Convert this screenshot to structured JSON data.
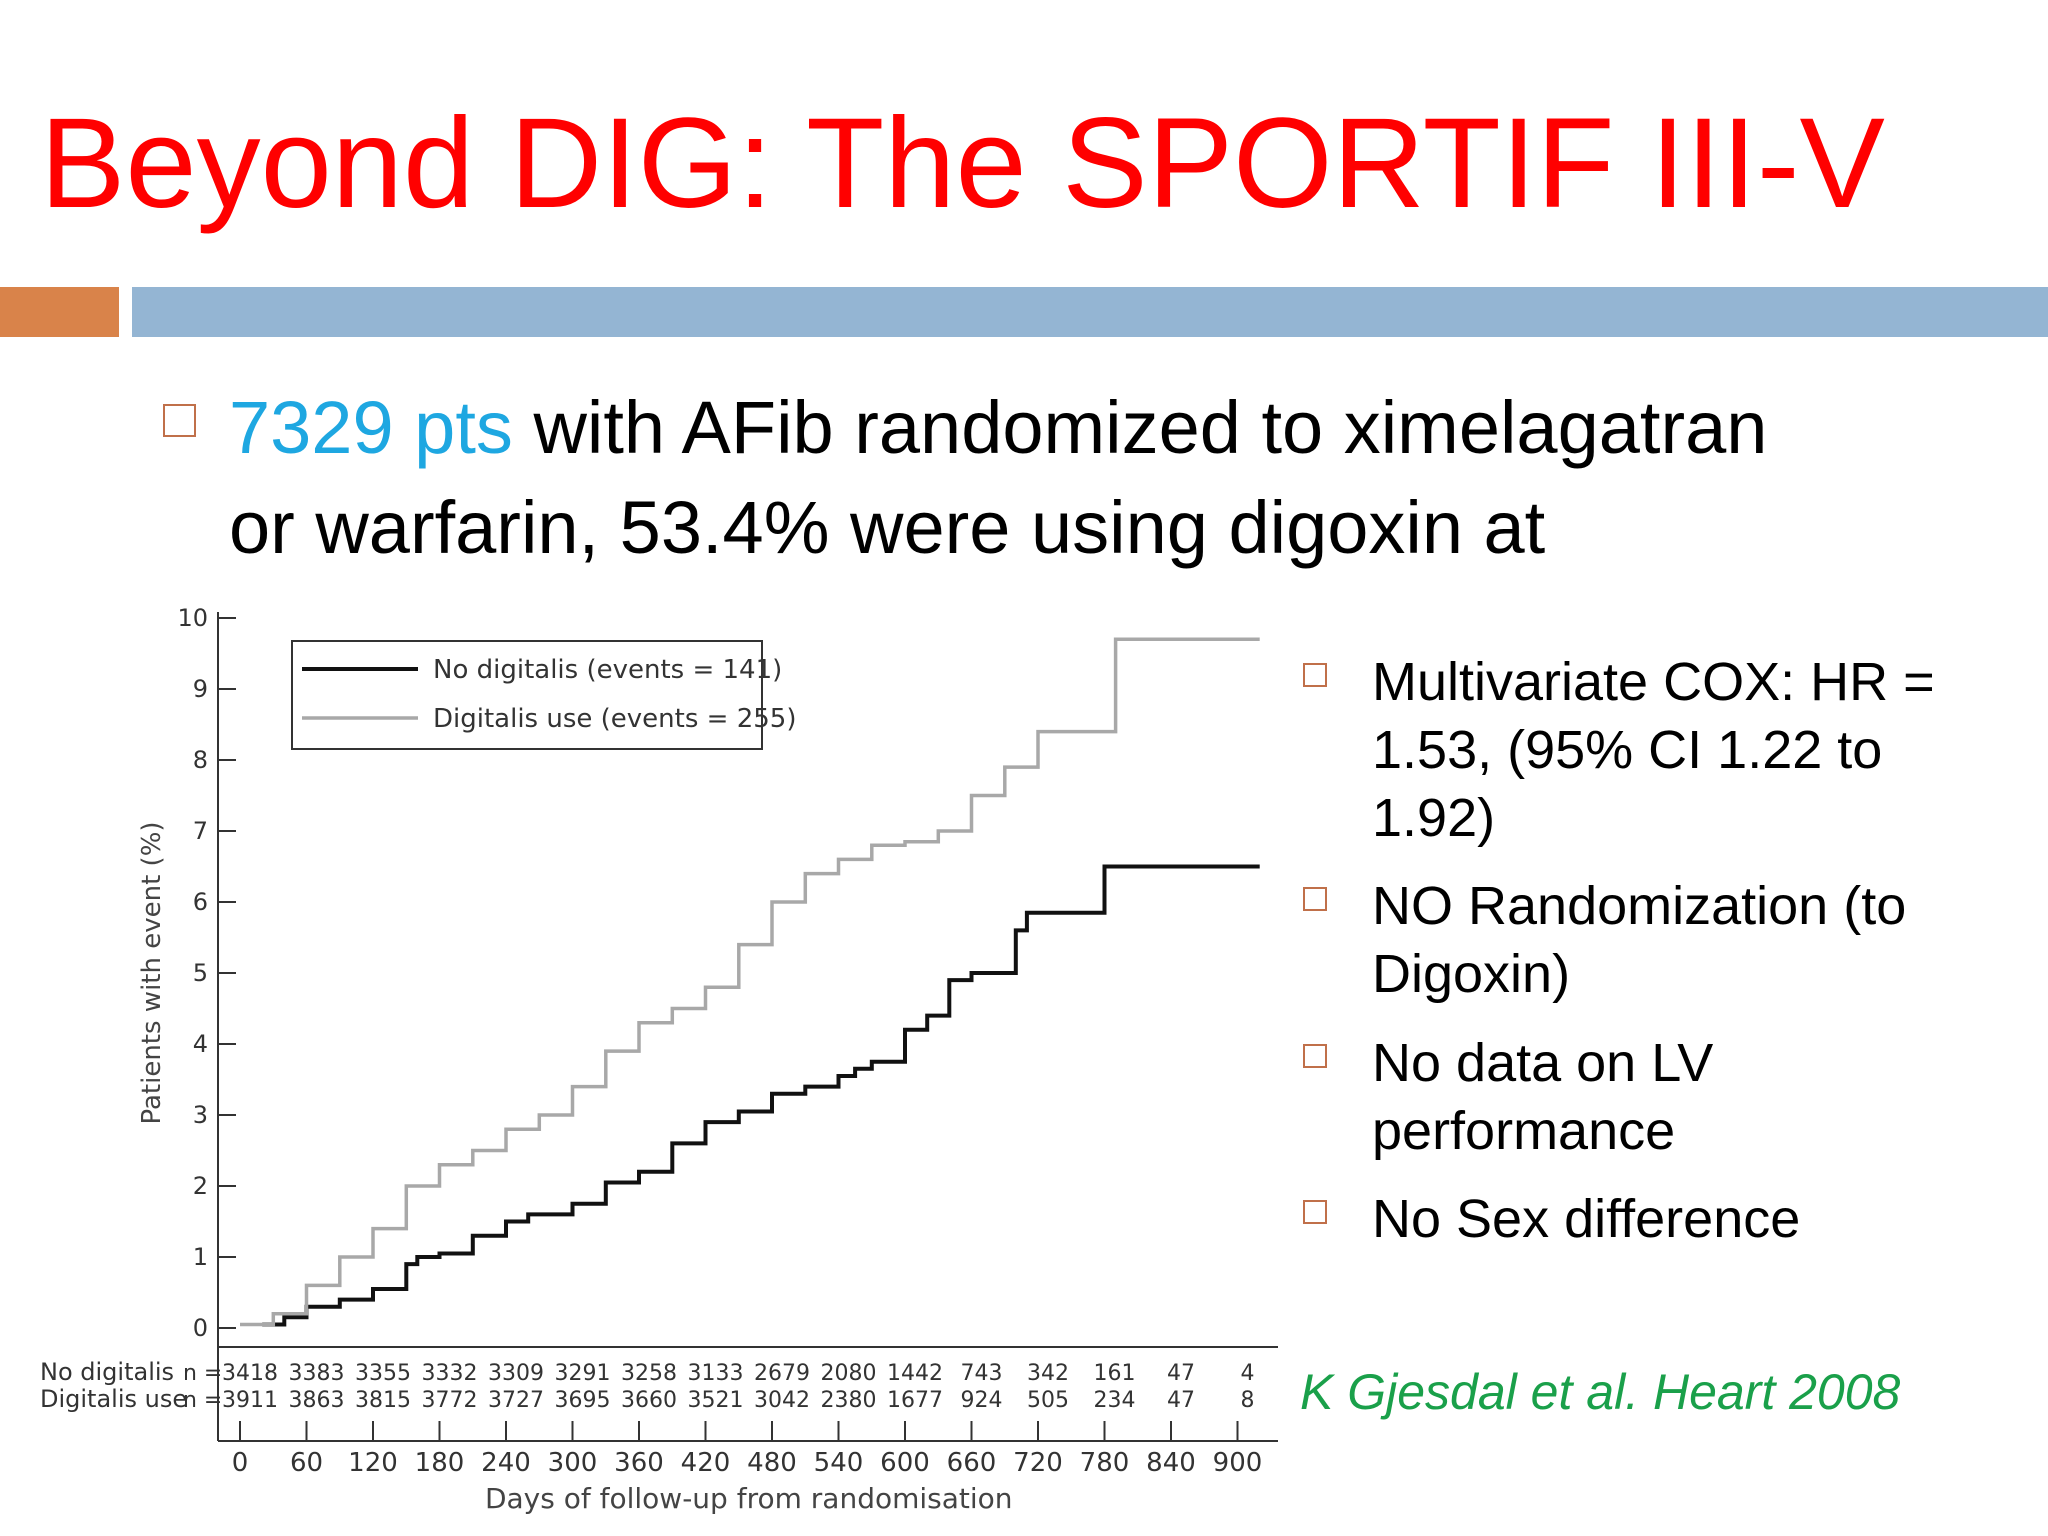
{
  "slide": {
    "title": "Beyond DIG: The SPORTIF III-V",
    "main_bullet": {
      "highlight": "7329 pts",
      "rest_line1": " with AFib randomized to ximelagatran",
      "line2": "or warfarin, 53.4% were using digoxin at"
    },
    "side_bullets": [
      "Multivariate COX: HR = 1.53, (95% CI 1.22 to 1.92)",
      "NO Randomization (to Digoxin)",
      "No data on LV performance",
      "No Sex difference"
    ],
    "citation": "K Gjesdal et al. Heart 2008",
    "colors": {
      "title": "#ff0000",
      "highlight": "#1ea7e1",
      "citation": "#1aa04a",
      "accent_orange": "#d9834a",
      "accent_blue": "#94b5d3"
    }
  },
  "chart_data": {
    "type": "line",
    "title": "",
    "xlabel": "Days of follow-up from randomisation",
    "ylabel": "Patients with event (%)",
    "xlim": [
      0,
      940
    ],
    "ylim": [
      0,
      10
    ],
    "xticks": [
      0,
      60,
      120,
      180,
      240,
      300,
      360,
      420,
      480,
      540,
      600,
      660,
      720,
      780,
      840,
      900
    ],
    "yticks": [
      0,
      1,
      2,
      3,
      4,
      5,
      6,
      7,
      8,
      9,
      10
    ],
    "legend_position": "top-left",
    "series": [
      {
        "name": "No digitalis (events = 141)",
        "color": "#111111",
        "x": [
          20,
          40,
          60,
          90,
          120,
          150,
          160,
          180,
          210,
          240,
          260,
          300,
          330,
          360,
          390,
          420,
          450,
          480,
          510,
          540,
          555,
          570,
          600,
          620,
          640,
          660,
          700,
          710,
          780,
          920
        ],
        "y": [
          0.05,
          0.15,
          0.3,
          0.4,
          0.55,
          0.9,
          1.0,
          1.05,
          1.3,
          1.5,
          1.6,
          1.75,
          2.05,
          2.2,
          2.6,
          2.9,
          3.05,
          3.3,
          3.4,
          3.55,
          3.65,
          3.75,
          4.2,
          4.4,
          4.9,
          5.0,
          5.6,
          5.85,
          6.5,
          6.5
        ]
      },
      {
        "name": "Digitalis use (events = 255)",
        "color": "#a8a8a8",
        "x": [
          0,
          30,
          60,
          90,
          120,
          150,
          180,
          210,
          240,
          270,
          300,
          330,
          360,
          390,
          420,
          450,
          480,
          510,
          540,
          570,
          600,
          630,
          660,
          690,
          720,
          780,
          790,
          920
        ],
        "y": [
          0.05,
          0.2,
          0.6,
          1.0,
          1.4,
          2.0,
          2.3,
          2.5,
          2.8,
          3.0,
          3.4,
          3.9,
          4.3,
          4.5,
          4.8,
          5.4,
          6.0,
          6.4,
          6.6,
          6.8,
          6.85,
          7.0,
          7.5,
          7.9,
          8.4,
          8.4,
          9.7,
          9.7
        ]
      }
    ],
    "at_risk": {
      "label_no": "No digitalis",
      "label_dig": "Digitalis use",
      "prefix": "n =",
      "no_digitalis": [
        "3418",
        "3383",
        "3355",
        "3332",
        "3309",
        "3291",
        "3258",
        "3133",
        "2679",
        "2080",
        "1442",
        "743",
        "342",
        "161",
        "47",
        "4"
      ],
      "digitalis_use": [
        "3911",
        "3863",
        "3815",
        "3772",
        "3727",
        "3695",
        "3660",
        "3521",
        "3042",
        "2380",
        "1677",
        "924",
        "505",
        "234",
        "47",
        "8"
      ]
    }
  }
}
